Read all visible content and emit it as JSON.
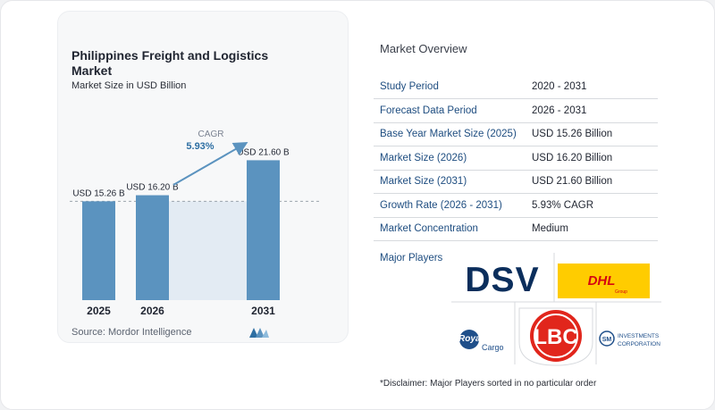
{
  "left_card": {
    "title": "Philippines Freight and Logistics Market",
    "subtitle": "Market Size in USD Billion",
    "source": "Source:  Mordor Intelligence"
  },
  "chart_data": {
    "type": "bar",
    "title": "Philippines Freight and Logistics Market",
    "subtitle": "Market Size in USD Billion",
    "categories": [
      "2025",
      "2026",
      "2031"
    ],
    "values": [
      15.26,
      16.2,
      21.6
    ],
    "data_labels": [
      "USD 15.26 B",
      "USD 16.20 B",
      "USD 21.60 B"
    ],
    "cagr_label": "CAGR",
    "cagr_value": "5.93%",
    "ylim": [
      0,
      24
    ],
    "bar_color": "#5b93bf",
    "grid": false
  },
  "market_overview": {
    "title": "Market Overview",
    "rows": [
      {
        "key": "Study Period",
        "value": "2020 - 2031"
      },
      {
        "key": "Forecast Data Period",
        "value": "2026 - 2031"
      },
      {
        "key": "Base Year Market Size (2025)",
        "value": "USD 15.26 Billion"
      },
      {
        "key": "Market Size (2026)",
        "value": "USD 16.20 Billion"
      },
      {
        "key": "Market Size (2031)",
        "value": "USD 21.60 Billion"
      },
      {
        "key": "Growth Rate (2026 - 2031)",
        "value": "5.93% CAGR"
      },
      {
        "key": "Market Concentration",
        "value": "Medium"
      }
    ]
  },
  "major_players": {
    "title": "Major Players",
    "logos": {
      "dsv": "DSV",
      "dhl": "DHL",
      "dhl_sub": "Group",
      "lbc": "LBC",
      "royal_1": "Royal",
      "royal_2": "Cargo",
      "sm_badge": "SM",
      "sm_1": "INVESTMENTS",
      "sm_2": "CORPORATION"
    }
  },
  "disclaimer": "*Disclaimer: Major Players sorted in no particular order"
}
